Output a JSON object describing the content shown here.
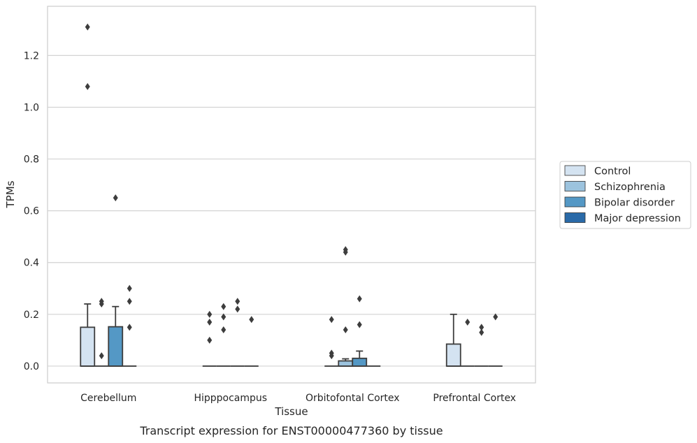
{
  "chart_data": {
    "type": "box",
    "xlabel": "Tissue",
    "ylabel": "TPMs",
    "caption": "Transcript expression for ENST00000477360 by tissue",
    "ylim": [
      -0.065,
      1.39
    ],
    "yticks": [
      "0.0",
      "0.2",
      "0.4",
      "0.6",
      "0.8",
      "1.0",
      "1.2"
    ],
    "ytick_values": [
      0.0,
      0.2,
      0.4,
      0.6,
      0.8,
      1.0,
      1.2
    ],
    "grid": "horizontal",
    "legend_position": "right",
    "categories": [
      "Cerebellum",
      "Hipppocampus",
      "Orbitofontal Cortex",
      "Prefrontal Cortex"
    ],
    "series": [
      {
        "name": "Control",
        "color": "#d4e3f1"
      },
      {
        "name": "Schizophrenia",
        "color": "#9cc3de"
      },
      {
        "name": "Bipolar disorder",
        "color": "#5498c5"
      },
      {
        "name": "Major depression",
        "color": "#2a6aa8"
      }
    ],
    "boxes": [
      [
        {
          "q1": 0.0,
          "median": 0.0,
          "q3": 0.15,
          "whisker_low": 0.0,
          "whisker_high": 0.24,
          "outliers": [
            1.31,
            1.08
          ]
        },
        {
          "q1": 0.0,
          "median": 0.0,
          "q3": 0.0,
          "whisker_low": 0.0,
          "whisker_high": 0.0,
          "outliers": [
            0.25,
            0.24,
            0.04
          ]
        },
        {
          "q1": 0.0,
          "median": 0.0,
          "q3": 0.152,
          "whisker_low": 0.0,
          "whisker_high": 0.23,
          "outliers": [
            0.65
          ]
        },
        {
          "q1": 0.0,
          "median": 0.0,
          "q3": 0.0,
          "whisker_low": 0.0,
          "whisker_high": 0.0,
          "outliers": [
            0.3,
            0.25,
            0.15
          ]
        }
      ],
      [
        {
          "q1": 0.0,
          "median": 0.0,
          "q3": 0.0,
          "whisker_low": 0.0,
          "whisker_high": 0.0,
          "outliers": [
            0.2,
            0.17,
            0.1
          ]
        },
        {
          "q1": 0.0,
          "median": 0.0,
          "q3": 0.0,
          "whisker_low": 0.0,
          "whisker_high": 0.0,
          "outliers": [
            0.23,
            0.19,
            0.14
          ]
        },
        {
          "q1": 0.0,
          "median": 0.0,
          "q3": 0.0,
          "whisker_low": 0.0,
          "whisker_high": 0.0,
          "outliers": [
            0.25,
            0.22
          ]
        },
        {
          "q1": 0.0,
          "median": 0.0,
          "q3": 0.0,
          "whisker_low": 0.0,
          "whisker_high": 0.0,
          "outliers": [
            0.18
          ]
        }
      ],
      [
        {
          "q1": 0.0,
          "median": 0.0,
          "q3": 0.0,
          "whisker_low": 0.0,
          "whisker_high": 0.0,
          "outliers": [
            0.18,
            0.05,
            0.04
          ]
        },
        {
          "q1": 0.0,
          "median": 0.0,
          "q3": 0.02,
          "whisker_low": 0.0,
          "whisker_high": 0.028,
          "outliers": [
            0.45,
            0.44,
            0.14
          ]
        },
        {
          "q1": 0.0,
          "median": 0.0,
          "q3": 0.03,
          "whisker_low": 0.0,
          "whisker_high": 0.058,
          "outliers": [
            0.26,
            0.16
          ]
        },
        {
          "q1": 0.0,
          "median": 0.0,
          "q3": 0.0,
          "whisker_low": 0.0,
          "whisker_high": 0.0,
          "outliers": []
        }
      ],
      [
        {
          "q1": 0.0,
          "median": 0.0,
          "q3": 0.085,
          "whisker_low": 0.0,
          "whisker_high": 0.2,
          "outliers": []
        },
        {
          "q1": 0.0,
          "median": 0.0,
          "q3": 0.0,
          "whisker_low": 0.0,
          "whisker_high": 0.0,
          "outliers": [
            0.17
          ]
        },
        {
          "q1": 0.0,
          "median": 0.0,
          "q3": 0.0,
          "whisker_low": 0.0,
          "whisker_high": 0.0,
          "outliers": [
            0.15,
            0.13
          ]
        },
        {
          "q1": 0.0,
          "median": 0.0,
          "q3": 0.0,
          "whisker_low": 0.0,
          "whisker_high": 0.0,
          "outliers": [
            0.19
          ]
        }
      ]
    ]
  }
}
